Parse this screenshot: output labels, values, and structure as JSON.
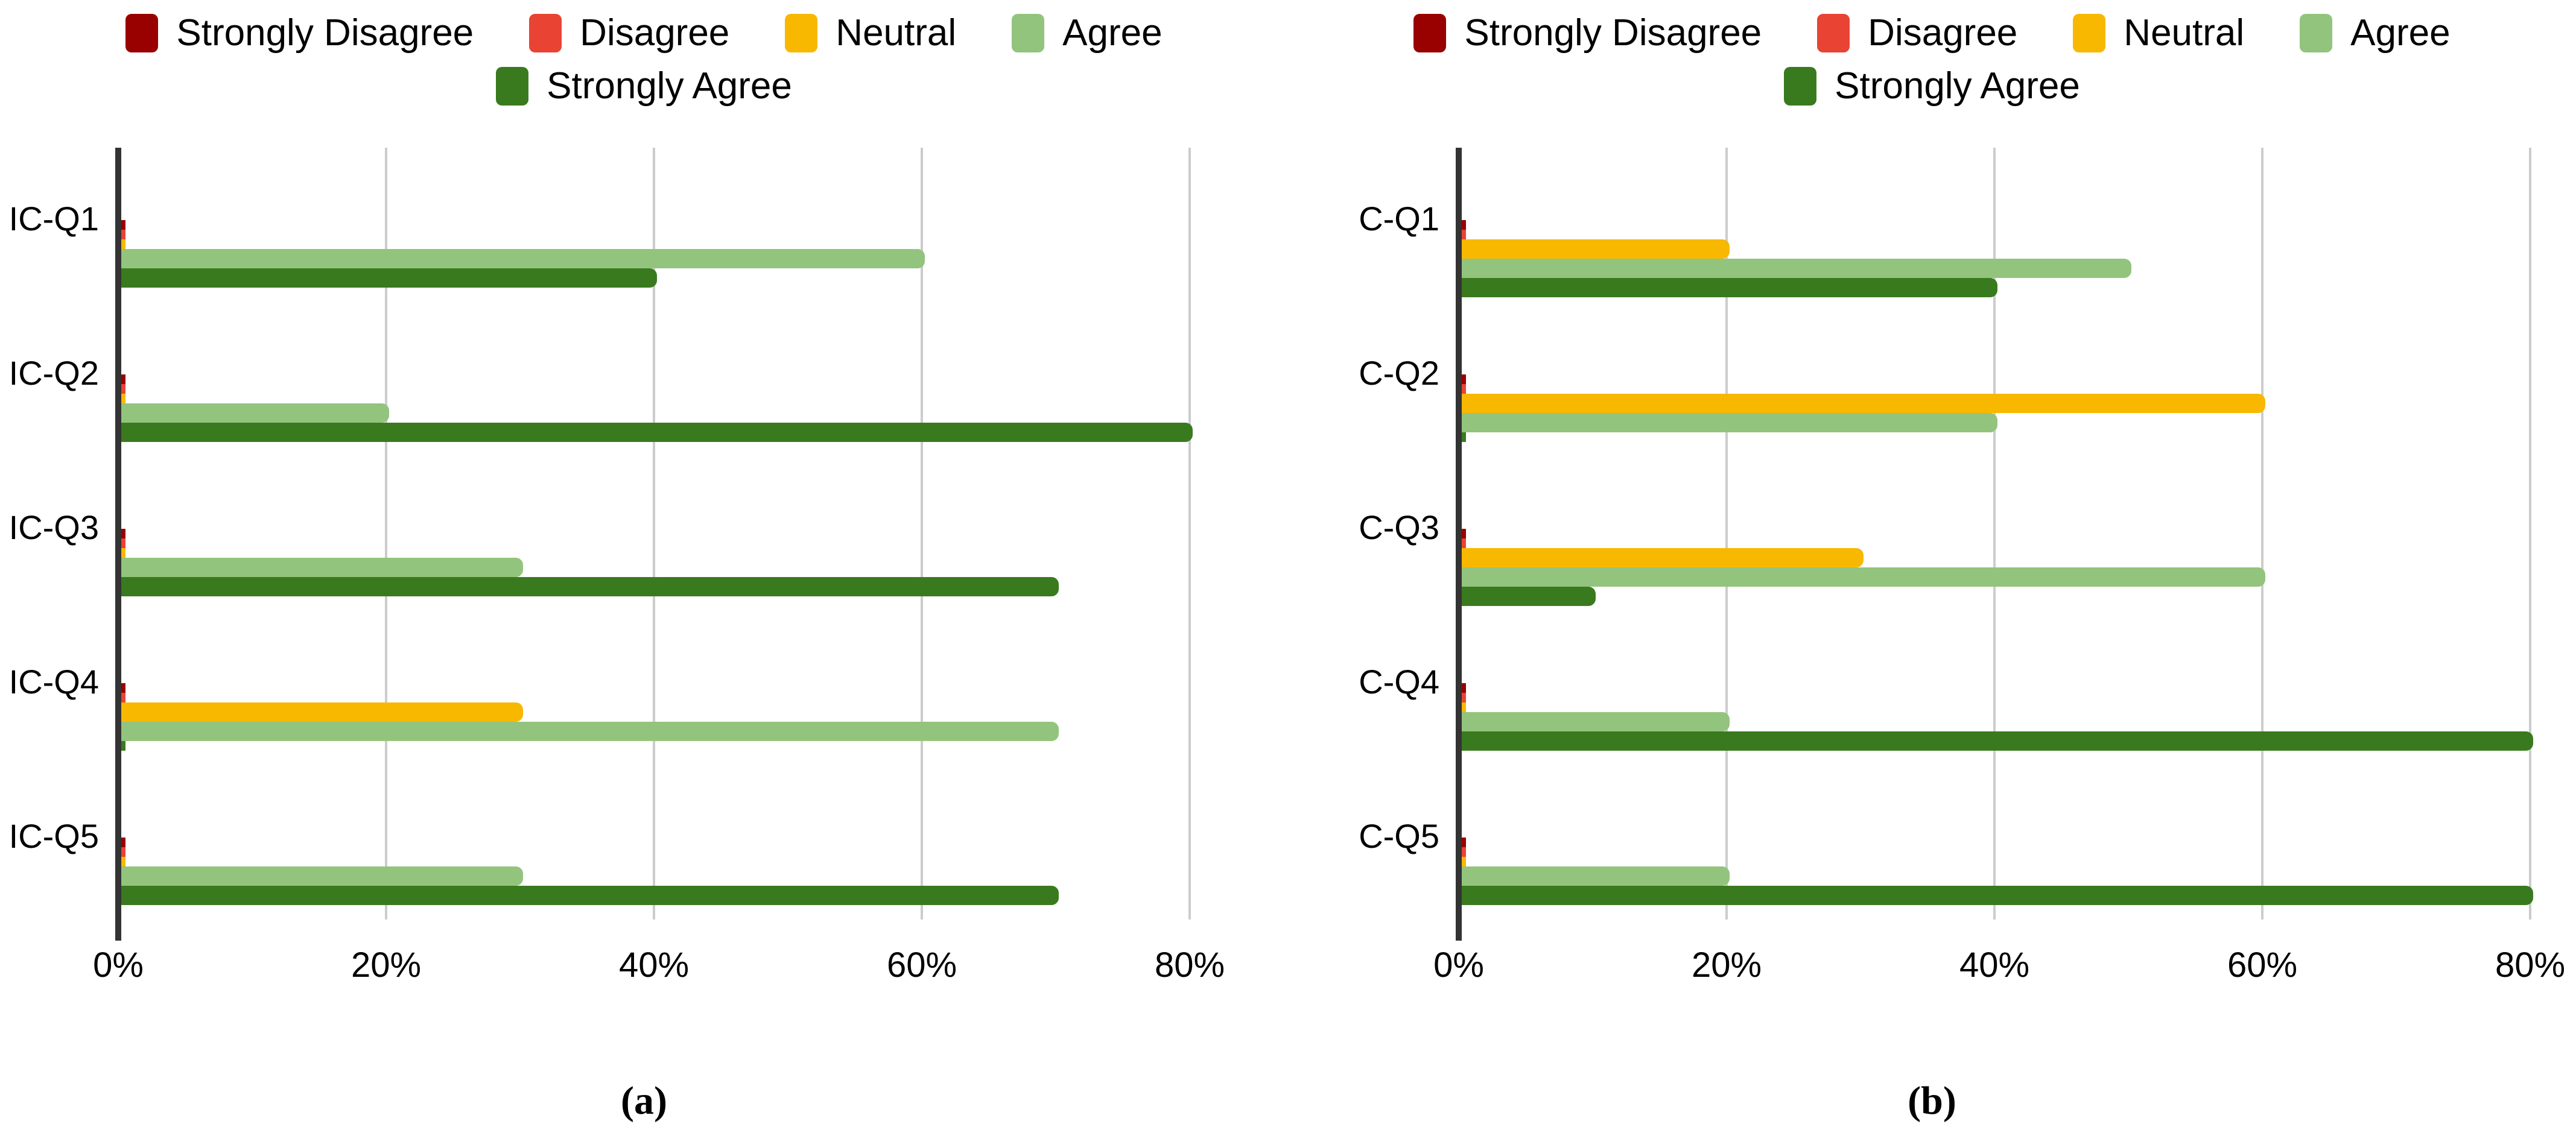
{
  "colors": {
    "strongly_disagree": "#990000",
    "disagree": "#E94334",
    "neutral": "#F8B800",
    "agree": "#93C47D",
    "strongly_agree": "#3A7A1E",
    "gridline": "#CCCCCC",
    "axis": "#333333",
    "text": "#000000"
  },
  "legend": {
    "row1_labels": [
      "Strongly Disagree",
      "Disagree",
      "Neutral",
      "Agree"
    ],
    "row2_labels": [
      "Strongly Agree"
    ]
  },
  "chart_data": [
    {
      "type": "bar",
      "orientation": "horizontal",
      "caption": "(a)",
      "categories": [
        "IC-Q1",
        "IC-Q2",
        "IC-Q3",
        "IC-Q4",
        "IC-Q5"
      ],
      "series": [
        {
          "name": "Strongly Disagree",
          "color_key": "strongly_disagree",
          "values": [
            0,
            0,
            0,
            0,
            0
          ]
        },
        {
          "name": "Disagree",
          "color_key": "disagree",
          "values": [
            0,
            0,
            0,
            0,
            0
          ]
        },
        {
          "name": "Neutral",
          "color_key": "neutral",
          "values": [
            0,
            0,
            0,
            30,
            0
          ]
        },
        {
          "name": "Agree",
          "color_key": "agree",
          "values": [
            60,
            20,
            30,
            70,
            30
          ]
        },
        {
          "name": "Strongly Agree",
          "color_key": "strongly_agree",
          "values": [
            40,
            80,
            70,
            0,
            70
          ]
        }
      ],
      "x_ticks": [
        0,
        20,
        40,
        60,
        80
      ],
      "x_tick_labels": [
        "0%",
        "20%",
        "40%",
        "60%",
        "80%"
      ],
      "xlim": [
        0,
        85
      ],
      "unit": "%",
      "grid": true,
      "legend_position": "top"
    },
    {
      "type": "bar",
      "orientation": "horizontal",
      "caption": "(b)",
      "categories": [
        "C-Q1",
        "C-Q2",
        "C-Q3",
        "C-Q4",
        "C-Q5"
      ],
      "series": [
        {
          "name": "Strongly Disagree",
          "color_key": "strongly_disagree",
          "values": [
            0,
            0,
            0,
            0,
            0
          ]
        },
        {
          "name": "Disagree",
          "color_key": "disagree",
          "values": [
            0,
            0,
            0,
            0,
            0
          ]
        },
        {
          "name": "Neutral",
          "color_key": "neutral",
          "values": [
            20,
            60,
            30,
            0,
            0
          ]
        },
        {
          "name": "Agree",
          "color_key": "agree",
          "values": [
            50,
            40,
            60,
            20,
            20
          ]
        },
        {
          "name": "Strongly Agree",
          "color_key": "strongly_agree",
          "values": [
            40,
            0,
            10,
            80,
            80
          ]
        }
      ],
      "x_ticks": [
        0,
        20,
        40,
        60,
        80
      ],
      "x_tick_labels": [
        "0%",
        "20%",
        "40%",
        "60%",
        "80%"
      ],
      "xlim": [
        0,
        85
      ],
      "unit": "%",
      "grid": true,
      "legend_position": "top"
    }
  ]
}
